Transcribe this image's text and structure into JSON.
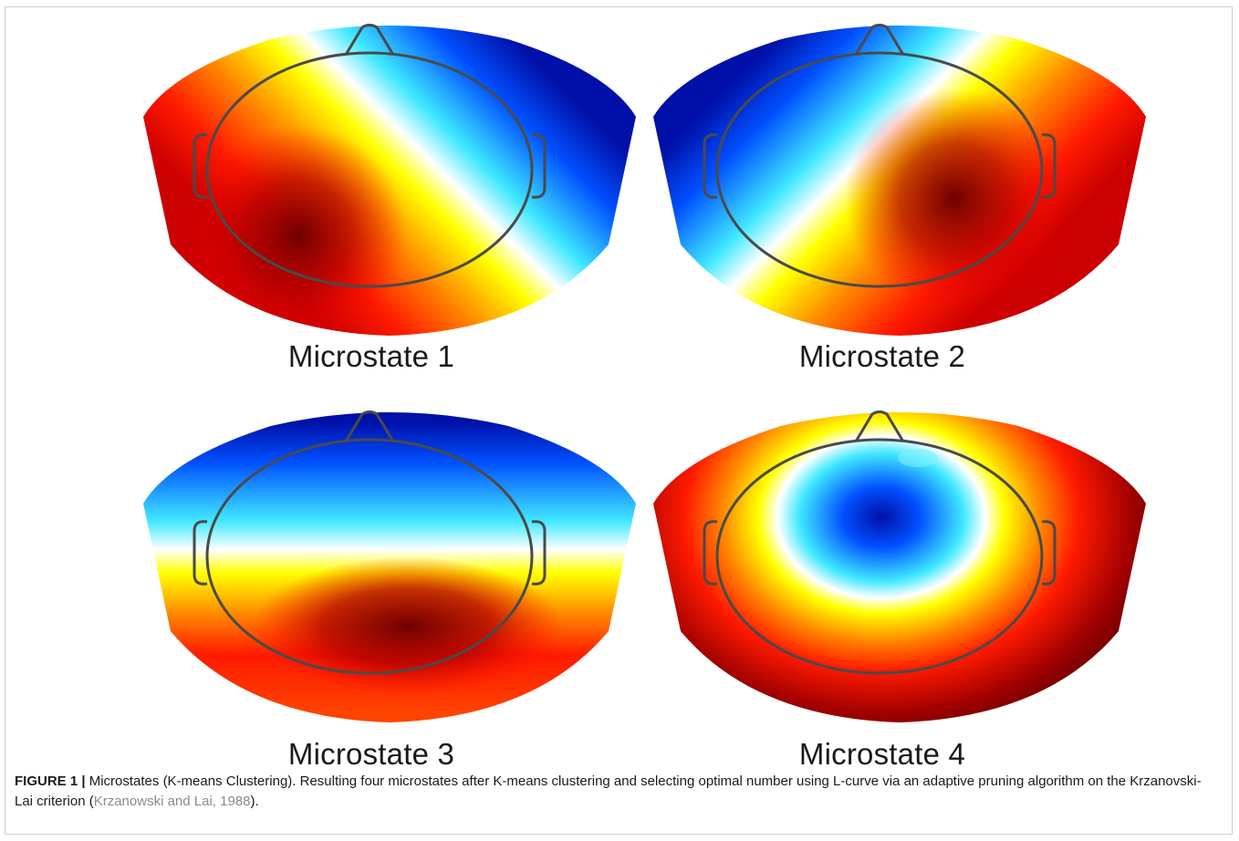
{
  "figure": {
    "panels": [
      {
        "label": "Microstate 1"
      },
      {
        "label": "Microstate 2"
      },
      {
        "label": "Microstate 3"
      },
      {
        "label": "Microstate 4"
      }
    ],
    "caption": {
      "figure_label": "FIGURE 1 |",
      "text": " Microstates (K-means Clustering). Resulting four microstates after K-means clustering and selecting optimal number using L-curve via an adaptive pruning algorithm on the Krzanovski-Lai criterion (",
      "reference": "Krzanowski and Lai, 1988",
      "text_end": ")."
    },
    "colors": {
      "dark_blue": "#0010a8",
      "blue": "#0040ff",
      "cyan": "#30e0ff",
      "white": "#ffffff",
      "yellow": "#ffff00",
      "orange": "#ff8800",
      "red": "#ff1a00",
      "dark_red": "#800000",
      "head_outline": "#4a4a4a"
    }
  }
}
